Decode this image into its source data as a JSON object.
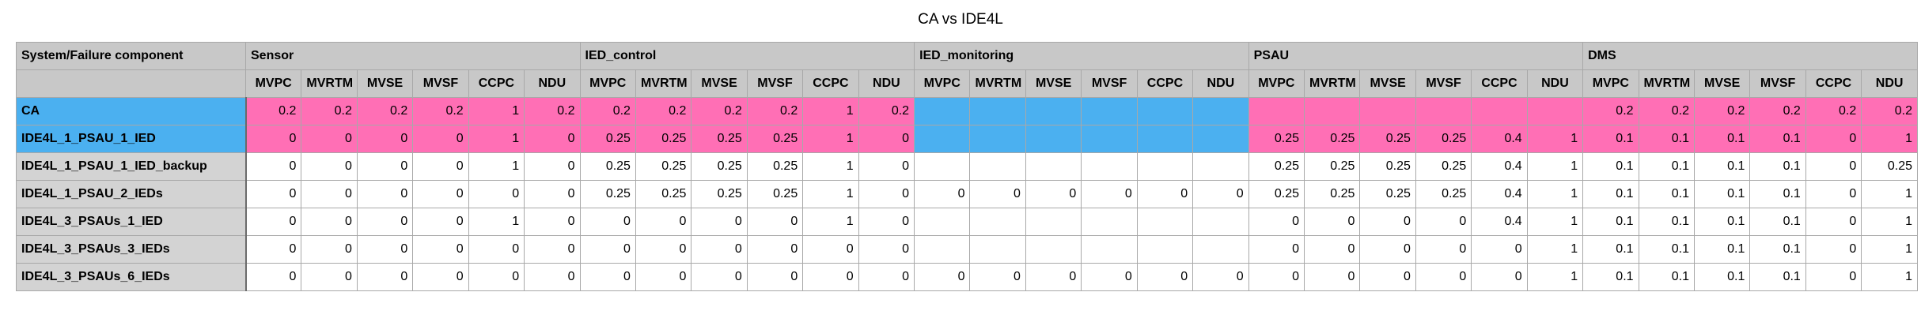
{
  "title": "CA vs IDE4L",
  "corner_label": "System/Failure component",
  "groups": [
    "Sensor",
    "IED_control",
    "IED_monitoring",
    "PSAU",
    "DMS"
  ],
  "subcolumns": [
    "MVPC",
    "MVRTM",
    "MVSE",
    "MVSF",
    "CCPC",
    "NDU"
  ],
  "colors": {
    "highlight_pink": "#ff6fb5",
    "highlight_blue": "#4bb0f0",
    "header_gray": "#c8c8c8"
  },
  "rows": [
    {
      "name": "CA",
      "cells": [
        "0.2",
        "0.2",
        "0.2",
        "0.2",
        "1",
        "0.2",
        "0.2",
        "0.2",
        "0.2",
        "0.2",
        "1",
        "0.2",
        "",
        "",
        "",
        "",
        "",
        "",
        "",
        "",
        "",
        "",
        "",
        "",
        "0.2",
        "0.2",
        "0.2",
        "0.2",
        "0.2",
        "0.2"
      ]
    },
    {
      "name": "IDE4L_1_PSAU_1_IED",
      "cells": [
        "0",
        "0",
        "0",
        "0",
        "1",
        "0",
        "0.25",
        "0.25",
        "0.25",
        "0.25",
        "1",
        "0",
        "",
        "",
        "",
        "",
        "",
        "",
        "0.25",
        "0.25",
        "0.25",
        "0.25",
        "0.4",
        "1",
        "0.1",
        "0.1",
        "0.1",
        "0.1",
        "0",
        "1"
      ]
    },
    {
      "name": "IDE4L_1_PSAU_1_IED_backup",
      "cells": [
        "0",
        "0",
        "0",
        "0",
        "1",
        "0",
        "0.25",
        "0.25",
        "0.25",
        "0.25",
        "1",
        "0",
        "",
        "",
        "",
        "",
        "",
        "",
        "0.25",
        "0.25",
        "0.25",
        "0.25",
        "0.4",
        "1",
        "0.1",
        "0.1",
        "0.1",
        "0.1",
        "0",
        "0.25"
      ]
    },
    {
      "name": "IDE4L_1_PSAU_2_IEDs",
      "cells": [
        "0",
        "0",
        "0",
        "0",
        "0",
        "0",
        "0.25",
        "0.25",
        "0.25",
        "0.25",
        "1",
        "0",
        "0",
        "0",
        "0",
        "0",
        "0",
        "0",
        "0.25",
        "0.25",
        "0.25",
        "0.25",
        "0.4",
        "1",
        "0.1",
        "0.1",
        "0.1",
        "0.1",
        "0",
        "1"
      ]
    },
    {
      "name": "IDE4L_3_PSAUs_1_IED",
      "cells": [
        "0",
        "0",
        "0",
        "0",
        "1",
        "0",
        "0",
        "0",
        "0",
        "0",
        "1",
        "0",
        "",
        "",
        "",
        "",
        "",
        "",
        "0",
        "0",
        "0",
        "0",
        "0.4",
        "1",
        "0.1",
        "0.1",
        "0.1",
        "0.1",
        "0",
        "1"
      ]
    },
    {
      "name": "IDE4L_3_PSAUs_3_IEDs",
      "cells": [
        "0",
        "0",
        "0",
        "0",
        "0",
        "0",
        "0",
        "0",
        "0",
        "0",
        "0",
        "0",
        "",
        "",
        "",
        "",
        "",
        "",
        "0",
        "0",
        "0",
        "0",
        "0",
        "1",
        "0.1",
        "0.1",
        "0.1",
        "0.1",
        "0",
        "1"
      ]
    },
    {
      "name": "IDE4L_3_PSAUs_6_IEDs",
      "cells": [
        "0",
        "0",
        "0",
        "0",
        "0",
        "0",
        "0",
        "0",
        "0",
        "0",
        "0",
        "0",
        "0",
        "0",
        "0",
        "0",
        "0",
        "0",
        "0",
        "0",
        "0",
        "0",
        "0",
        "1",
        "0.1",
        "0.1",
        "0.1",
        "0.1",
        "0",
        "1"
      ]
    }
  ]
}
